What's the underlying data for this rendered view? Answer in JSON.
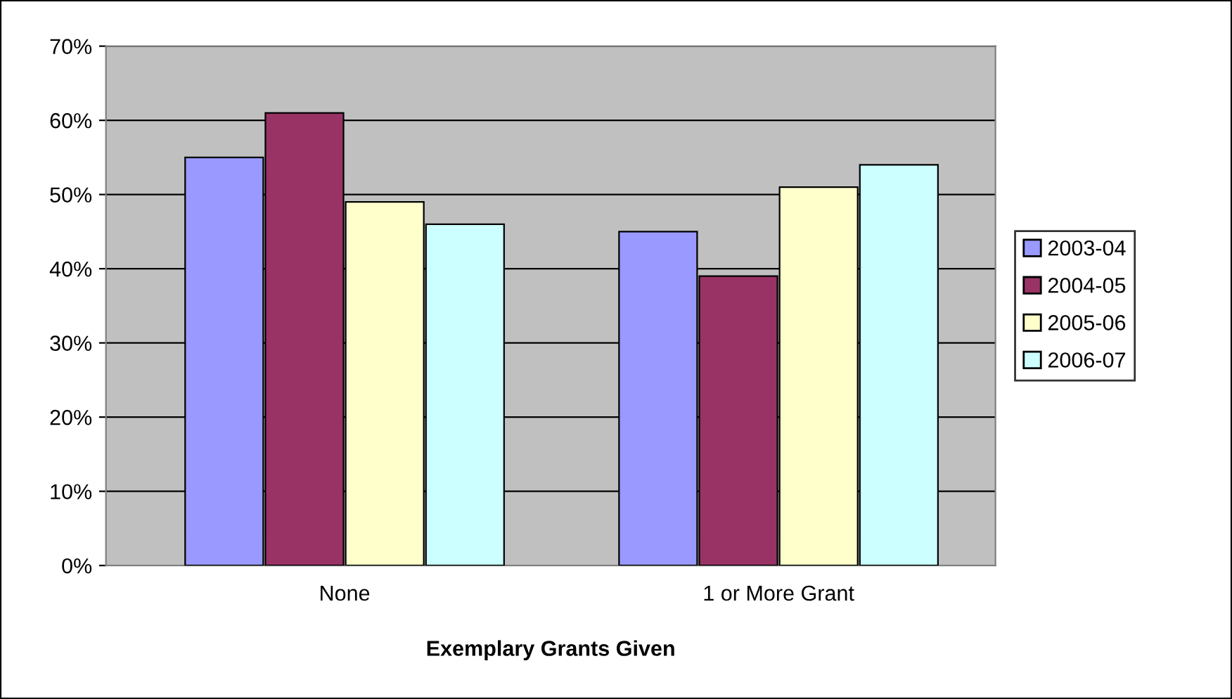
{
  "chart_data": {
    "type": "bar",
    "xlabel": "Exemplary Grants Given",
    "categories": [
      "None",
      "1 or More Grant"
    ],
    "series": [
      {
        "name": "2003-04",
        "color": "#9999ff",
        "values": [
          55,
          45
        ]
      },
      {
        "name": "2004-05",
        "color": "#993366",
        "values": [
          61,
          39
        ]
      },
      {
        "name": "2005-06",
        "color": "#ffffcc",
        "values": [
          49,
          51
        ]
      },
      {
        "name": "2006-07",
        "color": "#ccffff",
        "values": [
          46,
          54
        ]
      }
    ],
    "ylim": [
      0,
      70
    ],
    "yticks": [
      {
        "value": 0,
        "label": "0%"
      },
      {
        "value": 10,
        "label": "10%"
      },
      {
        "value": 20,
        "label": "20%"
      },
      {
        "value": 30,
        "label": "30%"
      },
      {
        "value": 40,
        "label": "40%"
      },
      {
        "value": 50,
        "label": "50%"
      },
      {
        "value": 60,
        "label": "60%"
      },
      {
        "value": 70,
        "label": "70%"
      }
    ],
    "grid": "y",
    "legend": "right"
  }
}
